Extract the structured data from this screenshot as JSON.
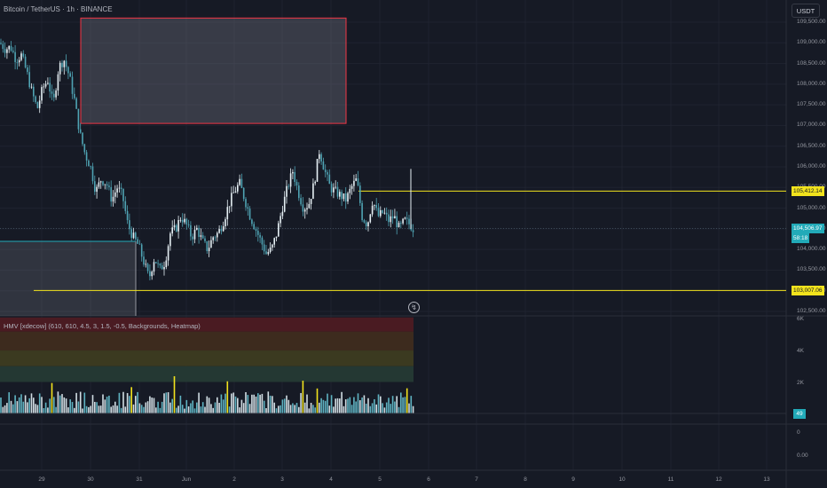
{
  "header": {
    "symbol_title": "Bitcoin / TetherUS · 1h · BINANCE",
    "currency_button": "USDT"
  },
  "price_axis": {
    "ticks": [
      "109,500.00",
      "109,000.00",
      "108,500.00",
      "108,000.00",
      "107,500.00",
      "107,000.00",
      "106,500.00",
      "106,000.00",
      "105,500.00",
      "105,000.00",
      "104,500.00",
      "104,000.00",
      "103,500.00",
      "103,000.00",
      "102,500.00"
    ],
    "levels": {
      "upper": {
        "label": "105,412.14",
        "price": 105412.14,
        "color": "#f2e31d"
      },
      "current": {
        "label": "104,506.97",
        "countdown": "58:18",
        "price": 104506.97,
        "color": "#22aab8"
      },
      "lower": {
        "label": "103,007.06",
        "price": 103007.06,
        "color": "#f2e31d"
      }
    }
  },
  "zones": [
    {
      "name": "supply-zone",
      "price_top": 109600,
      "price_bottom": 107050,
      "from": "May 29 18:00",
      "to": "Jun 4 06:00",
      "stroke": "#f23645"
    },
    {
      "name": "demand-zone",
      "price_top": 104250,
      "price_bottom": 102500,
      "from": "May 28",
      "to": "May 31 00:00",
      "stroke": "#22aab8"
    }
  ],
  "indicator": {
    "title": "HMV [xdecow] (610, 610, 4.5, 3, 1.5, -0.5, Backgrounds, Heatmap)",
    "ticks": [
      "6K",
      "4K",
      "2K"
    ],
    "current_badge": "49",
    "bands": [
      "#4a1b22",
      "#3d2b1e",
      "#3b3a20",
      "#243833"
    ]
  },
  "lower_pane": {
    "ticks": [
      "0",
      "0.00"
    ]
  },
  "time_axis": {
    "ticks": [
      "29",
      "30",
      "31",
      "Jun",
      "2",
      "3",
      "4",
      "5",
      "6",
      "7",
      "8",
      "9",
      "10",
      "11",
      "12",
      "13"
    ]
  },
  "chart_data": {
    "type": "candlestick",
    "title": "Bitcoin / TetherUS · 1h · BINANCE",
    "ylim": [
      102400,
      109800
    ],
    "close_path": [
      [
        0,
        109000
      ],
      [
        6,
        108850
      ],
      [
        12,
        108900
      ],
      [
        18,
        108600
      ],
      [
        24,
        108700
      ],
      [
        30,
        108300
      ],
      [
        36,
        107800
      ],
      [
        42,
        107400
      ],
      [
        48,
        107900
      ],
      [
        54,
        108100
      ],
      [
        60,
        107500
      ],
      [
        66,
        108400
      ],
      [
        72,
        108600
      ],
      [
        78,
        108200
      ],
      [
        84,
        107600
      ],
      [
        90,
        106800
      ],
      [
        96,
        106300
      ],
      [
        102,
        106000
      ],
      [
        108,
        105400
      ],
      [
        114,
        105700
      ],
      [
        120,
        105600
      ],
      [
        126,
        105200
      ],
      [
        132,
        105500
      ],
      [
        138,
        105300
      ],
      [
        144,
        104600
      ],
      [
        150,
        104300
      ],
      [
        156,
        104100
      ],
      [
        162,
        103700
      ],
      [
        168,
        103300
      ],
      [
        174,
        103800
      ],
      [
        180,
        103500
      ],
      [
        186,
        103700
      ],
      [
        192,
        104400
      ],
      [
        198,
        104500
      ],
      [
        204,
        104800
      ],
      [
        210,
        104600
      ],
      [
        216,
        104300
      ],
      [
        222,
        104500
      ],
      [
        228,
        104200
      ],
      [
        234,
        104000
      ],
      [
        240,
        104300
      ],
      [
        246,
        104400
      ],
      [
        252,
        104700
      ],
      [
        258,
        105100
      ],
      [
        264,
        105400
      ],
      [
        270,
        105600
      ],
      [
        276,
        105200
      ],
      [
        282,
        104800
      ],
      [
        288,
        104500
      ],
      [
        294,
        104200
      ],
      [
        300,
        103900
      ],
      [
        306,
        104000
      ],
      [
        312,
        104400
      ],
      [
        318,
        105000
      ],
      [
        324,
        105500
      ],
      [
        330,
        105900
      ],
      [
        336,
        105400
      ],
      [
        342,
        105000
      ],
      [
        348,
        105100
      ],
      [
        354,
        105600
      ],
      [
        360,
        106400
      ],
      [
        366,
        105900
      ],
      [
        372,
        105500
      ],
      [
        378,
        105400
      ],
      [
        384,
        105300
      ],
      [
        390,
        105200
      ],
      [
        396,
        105500
      ],
      [
        402,
        105700
      ],
      [
        408,
        104800
      ],
      [
        414,
        104600
      ],
      [
        420,
        105200
      ],
      [
        426,
        104800
      ],
      [
        432,
        104900
      ],
      [
        438,
        104700
      ],
      [
        444,
        104800
      ],
      [
        450,
        104500
      ],
      [
        456,
        104700
      ],
      [
        462,
        104600
      ],
      [
        466,
        104500
      ]
    ],
    "volume_ylim": [
      0,
      6200
    ]
  }
}
